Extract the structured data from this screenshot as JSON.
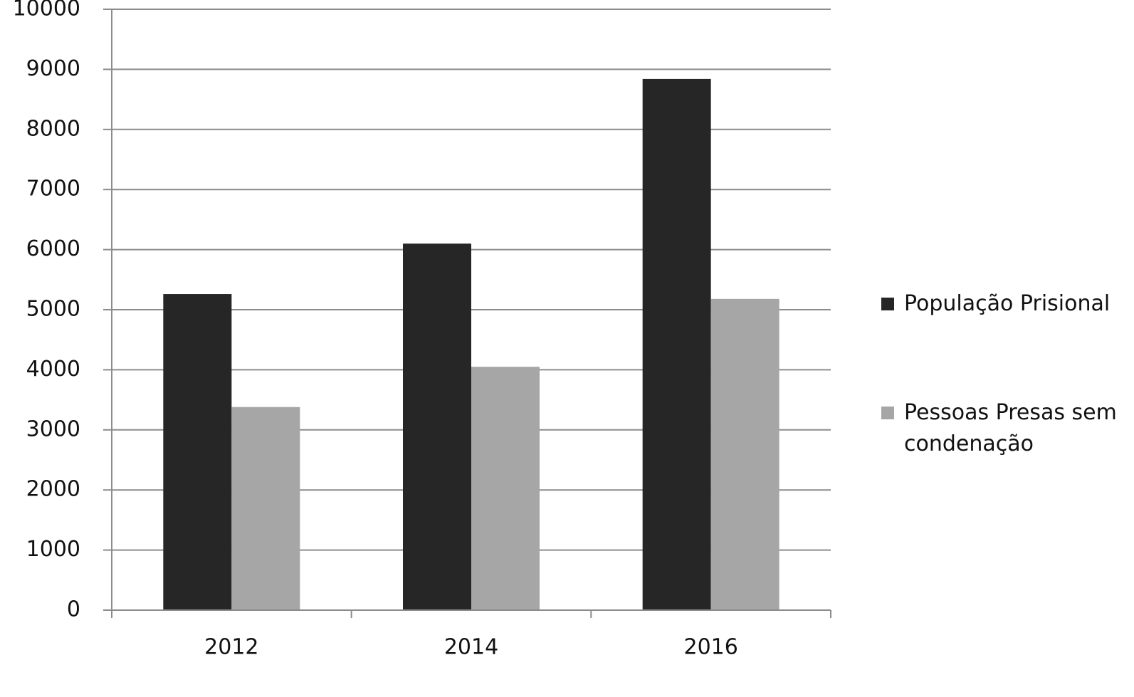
{
  "chart_data": {
    "type": "bar",
    "categories": [
      "2012",
      "2014",
      "2016"
    ],
    "series": [
      {
        "name": "População Prisional",
        "color": "#262626",
        "values": [
          5260,
          6100,
          8840
        ]
      },
      {
        "name": "Pessoas Presas sem condenação",
        "color": "#a6a6a6",
        "values": [
          3380,
          4050,
          5180
        ]
      }
    ],
    "ylim": [
      0,
      10000
    ],
    "yticks": [
      0,
      1000,
      2000,
      3000,
      4000,
      5000,
      6000,
      7000,
      8000,
      9000,
      10000
    ],
    "grid": true,
    "legend": "right"
  }
}
